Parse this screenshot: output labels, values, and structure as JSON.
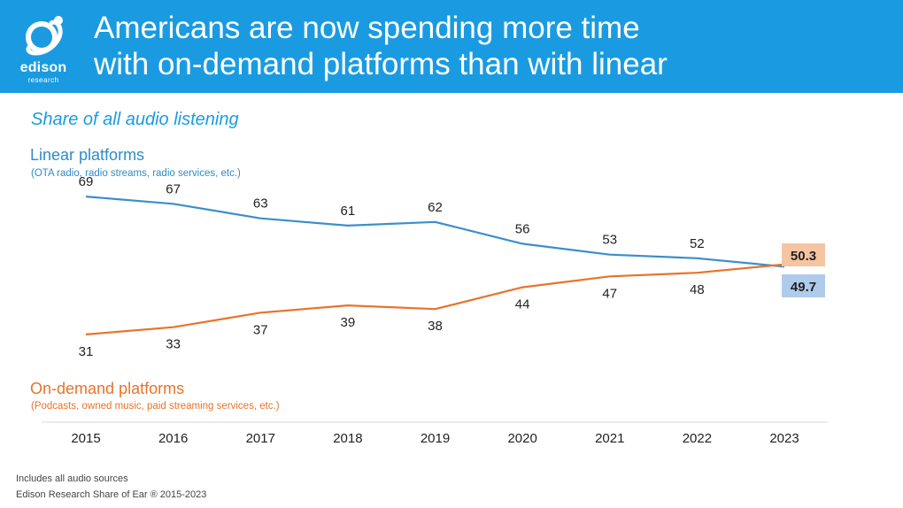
{
  "header": {
    "title_line1": "Americans are now spending more time",
    "title_line2": "with on-demand platforms than with linear",
    "logo_word": "edison",
    "logo_sub": "research",
    "background": "#1a9be1"
  },
  "subtitle": "Share of all audio listening",
  "linear_label": {
    "title": "Linear platforms",
    "detail": "(OTA radio, radio streams, radio services, etc.)"
  },
  "ondemand_label": {
    "title": "On-demand platforms",
    "detail": "(Podcasts, owned music, paid streaming services, etc.)"
  },
  "footnotes": {
    "line1": "Includes all audio sources",
    "line2": "Edison Research Share of Ear ® 2015-2023"
  },
  "chart_data": {
    "type": "line",
    "title": "Share of all audio listening",
    "x": [
      "2015",
      "2016",
      "2017",
      "2018",
      "2019",
      "2020",
      "2021",
      "2022",
      "2023"
    ],
    "series": [
      {
        "name": "Linear platforms",
        "color": "#3a8fcb",
        "labels": [
          "69",
          "67",
          "63",
          "61",
          "62",
          "56",
          "53",
          "52",
          "49.7"
        ],
        "values": [
          69,
          67,
          63,
          61,
          62,
          56,
          53,
          52,
          49.7
        ],
        "end_label_bg": "#aecbeb"
      },
      {
        "name": "On-demand platforms",
        "color": "#e8732a",
        "labels": [
          "31",
          "33",
          "37",
          "39",
          "38",
          "44",
          "47",
          "48",
          "50.3"
        ],
        "values": [
          31,
          33,
          37,
          39,
          38,
          44,
          47,
          48,
          50.3
        ],
        "end_label_bg": "#f5c4a1"
      }
    ]
  }
}
